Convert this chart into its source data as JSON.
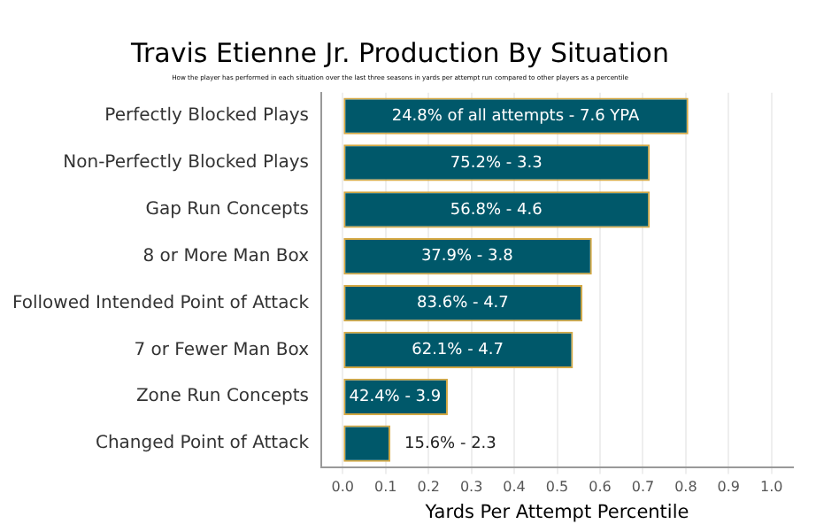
{
  "chart_data": {
    "type": "bar",
    "orientation": "horizontal",
    "title": "Travis Etienne Jr. Production By Situation",
    "subtitle": "How the player has performed in each situation over the last three seasons in yards per attempt run compared to other players as a percentile",
    "xlabel": "Yards Per Attempt Percentile",
    "categories": [
      "Perfectly Blocked Plays",
      "Non-Perfectly Blocked Plays",
      "Gap Run Concepts",
      "8 or More Man Box",
      "Followed Intended Point of Attack",
      "7 or Fewer Man Box",
      "Zone Run Concepts",
      "Changed Point of Attack"
    ],
    "values": [
      0.806,
      0.716,
      0.716,
      0.581,
      0.559,
      0.537,
      0.245,
      0.111
    ],
    "annotations": [
      {
        "text": "24.8% of all attempts - 7.6 YPA",
        "x": 0.403,
        "y": "Perfectly Blocked Plays"
      },
      {
        "text": "75.2% - 3.3",
        "x": 0.358,
        "y": "Non-Perfectly Blocked Plays"
      },
      {
        "text": "56.8% - 4.6",
        "x": 0.358,
        "y": "Gap Run Concepts"
      },
      {
        "text": "37.9% - 3.8",
        "x": 0.29,
        "y": "8 or More Man Box"
      },
      {
        "text": "83.6% - 4.7",
        "x": 0.28,
        "y": "Followed Intended Point of Attack"
      },
      {
        "text": "62.1% - 4.7",
        "x": 0.268,
        "y": "7 or Fewer Man Box"
      },
      {
        "text": "42.4% - 3.9",
        "x": 0.122,
        "y": "Zone Run Concepts"
      },
      {
        "text": "15.6% - 2.3",
        "x": 0.111,
        "y": "Changed Point of Attack"
      }
    ],
    "color": "#00586a",
    "xlim": [
      -0.05,
      1.05
    ],
    "xticks": [
      {
        "value": 0,
        "label": "0.0"
      },
      0.1,
      0.2,
      0.3,
      0.4,
      0.5,
      0.6,
      0.7,
      0.8,
      0.9,
      {
        "value": 1,
        "label": "1.0"
      }
    ],
    "grid": "x",
    "legend": false
  }
}
